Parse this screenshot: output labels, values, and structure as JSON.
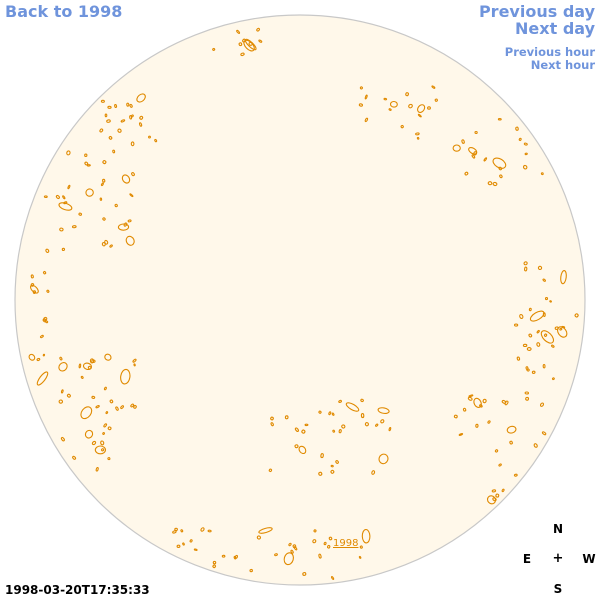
{
  "nav": {
    "back_label": "Back to 1998",
    "prev_day_label": "Previous day",
    "next_day_label": "Next day",
    "prev_hour_label": "Previous hour",
    "next_hour_label": "Next hour"
  },
  "compass": {
    "north": "N",
    "south": "S",
    "east": "E",
    "west": "W",
    "center": "+"
  },
  "timestamp": "1998-03-20T17:35:33",
  "year_label": "1998",
  "colors": {
    "disk_fill": "#fff8ea",
    "disk_border": "#c8c8c8",
    "contour": "#e08a00",
    "link": "#6f94dc"
  }
}
